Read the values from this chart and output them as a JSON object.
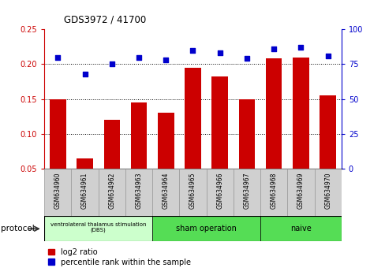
{
  "title": "GDS3972 / 41700",
  "samples": [
    "GSM634960",
    "GSM634961",
    "GSM634962",
    "GSM634963",
    "GSM634964",
    "GSM634965",
    "GSM634966",
    "GSM634967",
    "GSM634968",
    "GSM634969",
    "GSM634970"
  ],
  "log2_ratio": [
    0.15,
    0.065,
    0.12,
    0.145,
    0.13,
    0.195,
    0.182,
    0.15,
    0.208,
    0.21,
    0.155
  ],
  "percentile_rank": [
    80,
    68,
    75,
    80,
    78,
    85,
    83,
    79,
    86,
    87,
    81
  ],
  "ylim_left": [
    0.05,
    0.25
  ],
  "ylim_right": [
    0,
    100
  ],
  "yticks_left": [
    0.05,
    0.1,
    0.15,
    0.2,
    0.25
  ],
  "yticks_right": [
    0,
    25,
    50,
    75,
    100
  ],
  "bar_color": "#cc0000",
  "dot_color": "#0000cc",
  "groups": [
    {
      "label": "ventrolateral thalamus stimulation\n(DBS)",
      "start": 0,
      "end": 3,
      "color": "#ccffcc"
    },
    {
      "label": "sham operation",
      "start": 4,
      "end": 7,
      "color": "#44dd44"
    },
    {
      "label": "naive",
      "start": 8,
      "end": 10,
      "color": "#44dd44"
    }
  ],
  "legend_bar_label": "log2 ratio",
  "legend_dot_label": "percentile rank within the sample",
  "protocol_label": "protocol",
  "grid_vals": [
    0.1,
    0.15,
    0.2
  ],
  "bar_width": 0.6
}
